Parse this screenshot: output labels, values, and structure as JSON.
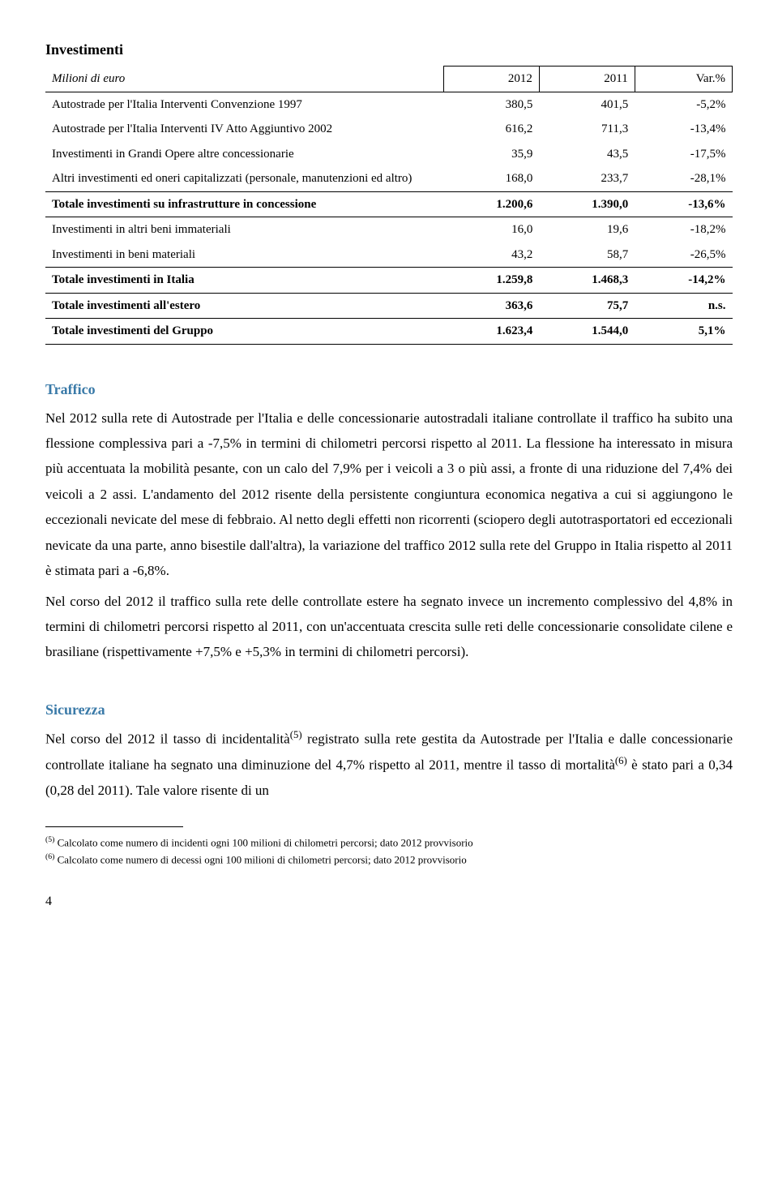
{
  "table": {
    "title": "Investimenti",
    "subtitle": "Milioni di euro",
    "headers": {
      "c1": "2012",
      "c2": "2011",
      "c3": "Var.%"
    },
    "rows": [
      {
        "label": "Autostrade per l'Italia Interventi Convenzione 1997",
        "c1": "380,5",
        "c2": "401,5",
        "c3": "-5,2%"
      },
      {
        "label": "Autostrade per l'Italia Interventi IV Atto Aggiuntivo 2002",
        "c1": "616,2",
        "c2": "711,3",
        "c3": "-13,4%"
      },
      {
        "label": "Investimenti in Grandi Opere altre concessionarie",
        "c1": "35,9",
        "c2": "43,5",
        "c3": "-17,5%"
      },
      {
        "label": "Altri investimenti ed oneri capitalizzati (personale, manutenzioni ed altro)",
        "c1": "168,0",
        "c2": "233,7",
        "c3": "-28,1%"
      }
    ],
    "sub1": {
      "label": "Totale investimenti su infrastrutture in concessione",
      "c1": "1.200,6",
      "c2": "1.390,0",
      "c3": "-13,6%"
    },
    "rows2": [
      {
        "label": "Investimenti in altri beni immateriali",
        "c1": "16,0",
        "c2": "19,6",
        "c3": "-18,2%"
      },
      {
        "label": "Investimenti in beni materiali",
        "c1": "43,2",
        "c2": "58,7",
        "c3": "-26,5%"
      }
    ],
    "sub2": {
      "label": "Totale investimenti in Italia",
      "c1": "1.259,8",
      "c2": "1.468,3",
      "c3": "-14,2%"
    },
    "sub3": {
      "label": "Totale investimenti all'estero",
      "c1": "363,6",
      "c2": "75,7",
      "c3": "n.s."
    },
    "sub4": {
      "label": "Totale investimenti del Gruppo",
      "c1": "1.623,4",
      "c2": "1.544,0",
      "c3": "5,1%"
    }
  },
  "section1": {
    "heading": "Traffico",
    "p1": "Nel 2012 sulla rete di Autostrade per l'Italia e delle concessionarie autostradali italiane controllate il traffico ha subito una flessione complessiva pari a -7,5% in termini di chilometri percorsi rispetto al 2011. La flessione ha interessato in misura più accentuata la mobilità pesante, con un calo del 7,9% per i veicoli a 3 o più assi, a fronte di una riduzione del 7,4% dei veicoli a 2 assi. L'andamento del 2012 risente della persistente congiuntura economica negativa a cui si aggiungono le eccezionali nevicate del mese di febbraio. Al netto degli effetti non ricorrenti (sciopero degli autotrasportatori ed eccezionali nevicate da una parte, anno bisestile dall'altra), la variazione del traffico 2012 sulla rete del Gruppo in Italia rispetto al 2011 è stimata pari a -6,8%.",
    "p2": "Nel corso del 2012 il traffico sulla rete delle controllate estere ha segnato invece un incremento complessivo del 4,8% in termini di chilometri percorsi rispetto al 2011, con un'accentuata crescita sulle reti delle concessionarie consolidate cilene e brasiliane (rispettivamente +7,5% e +5,3% in termini di chilometri percorsi)."
  },
  "section2": {
    "heading": "Sicurezza",
    "p1_a": "Nel corso del 2012 il tasso di incidentalità",
    "p1_b": " registrato sulla rete gestita da Autostrade per l'Italia e dalle concessionarie controllate italiane ha segnato una diminuzione del 4,7% rispetto al 2011, mentre il tasso di mortalità",
    "p1_c": " è stato pari a 0,34 (0,28 del 2011). Tale valore risente di un",
    "sup1": "(5)",
    "sup2": "(6)"
  },
  "footnotes": {
    "f5_sup": "(5)",
    "f5": " Calcolato come numero di incidenti ogni 100 milioni di chilometri percorsi; dato 2012 provvisorio",
    "f6_sup": "(6)",
    "f6": " Calcolato come numero di decessi ogni 100 milioni di chilometri percorsi; dato 2012 provvisorio"
  },
  "page": "4"
}
